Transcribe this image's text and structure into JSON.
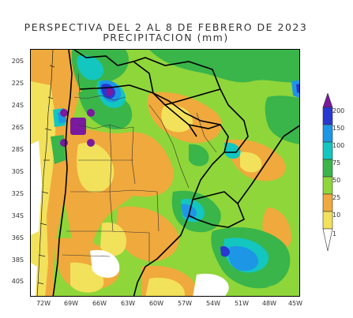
{
  "title": {
    "line1": "PERSPECTIVA DEL 2 AL 8 DE FEBRERO DE 2023",
    "line2": "PRECIPITACION (mm)"
  },
  "map": {
    "lat_ticks": [
      "20S",
      "22S",
      "24S",
      "26S",
      "28S",
      "30S",
      "32S",
      "34S",
      "36S",
      "38S",
      "40S"
    ],
    "lon_ticks": [
      "72W",
      "69W",
      "66W",
      "63W",
      "60W",
      "57W",
      "54W",
      "51W",
      "48W",
      "45W"
    ],
    "lat_range": [
      -41,
      -18.8
    ],
    "lon_range": [
      -74.2,
      -45
    ]
  },
  "legend": {
    "levels": [
      "200",
      "150",
      "100",
      "75",
      "50",
      "25",
      "10",
      "1"
    ],
    "colors": [
      "#7a1a9e",
      "#2838d0",
      "#1d96e6",
      "#13c6c0",
      "#39b54a",
      "#8fd63a",
      "#f0a93c",
      "#f2e15a",
      "#ffffff"
    ]
  }
}
